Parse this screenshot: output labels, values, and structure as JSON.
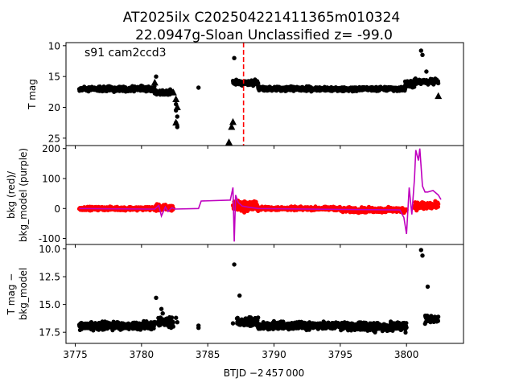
{
  "title_line1": "AT2025ilx  C202504221411365m010324",
  "title_line2": "22.0947g-Sloan Unclassified z= -99.0",
  "xlabel": "BTJD −2 457 000",
  "colors": {
    "flux": "#000000",
    "bkg": "#ff0000",
    "bkg_model": "#bf00bf",
    "marker_line": "#ff0000"
  },
  "chart_data": [
    {
      "type": "scatter",
      "panel": "top",
      "annotation": "s91 cam2ccd3",
      "ylabel": "T mag",
      "xlim": [
        3774.3,
        3804.3
      ],
      "ylim": [
        26.2,
        9.5
      ],
      "y_inverted": true,
      "yticks": [
        10,
        15,
        20,
        25
      ],
      "xticks": [
        3775,
        3780,
        3785,
        3790,
        3795,
        3800
      ],
      "vline_x": 3787.7,
      "segments": [
        {
          "x0": 3775.3,
          "x1": 3781.0,
          "y": 17.0,
          "spread": 0.55
        },
        {
          "x0": 3781.0,
          "x1": 3782.4,
          "y": 17.6,
          "spread": 0.6
        },
        {
          "x0": 3786.9,
          "x1": 3788.8,
          "y": 16.0,
          "spread": 0.6
        },
        {
          "x0": 3788.8,
          "x1": 3799.9,
          "y": 17.0,
          "spread": 0.5
        },
        {
          "x0": 3799.9,
          "x1": 3800.6,
          "y": 16.2,
          "spread": 0.8
        },
        {
          "x0": 3800.6,
          "x1": 3802.4,
          "y": 15.8,
          "spread": 0.6
        }
      ],
      "points": [
        {
          "x": 3782.6,
          "y": 19.5
        },
        {
          "x": 3782.6,
          "y": 20.5
        },
        {
          "x": 3782.7,
          "y": 21.5
        },
        {
          "x": 3782.6,
          "y": 22.5
        },
        {
          "x": 3782.7,
          "y": 23.2
        },
        {
          "x": 3784.3,
          "y": 16.8
        },
        {
          "x": 3787.0,
          "y": 12.0
        },
        {
          "x": 3781.1,
          "y": 15.0
        },
        {
          "x": 3801.1,
          "y": 10.8
        },
        {
          "x": 3801.2,
          "y": 11.5
        },
        {
          "x": 3801.5,
          "y": 14.2
        }
      ],
      "triangles": [
        {
          "x": 3786.6,
          "y": 25.7
        },
        {
          "x": 3786.8,
          "y": 23.2
        },
        {
          "x": 3786.9,
          "y": 22.4
        },
        {
          "x": 3782.6,
          "y": 22.5
        },
        {
          "x": 3782.7,
          "y": 20.0
        },
        {
          "x": 3782.6,
          "y": 18.7
        },
        {
          "x": 3782.4,
          "y": 17.6
        },
        {
          "x": 3781.0,
          "y": 16.0
        },
        {
          "x": 3802.4,
          "y": 18.2
        }
      ]
    },
    {
      "type": "scatter",
      "panel": "middle",
      "ylabel": "bkg (red)/\nbkg_model (purple)",
      "xlim": [
        3774.3,
        3804.3
      ],
      "ylim": [
        -120,
        210
      ],
      "yticks": [
        -100,
        0,
        100,
        200
      ],
      "xticks": [
        3775,
        3780,
        3785,
        3790,
        3795,
        3800
      ],
      "bkg_segments": [
        {
          "x0": 3775.3,
          "x1": 3781.0,
          "y": 0,
          "spread": 8
        },
        {
          "x0": 3781.0,
          "x1": 3782.4,
          "y": 2,
          "spread": 15
        },
        {
          "x0": 3786.9,
          "x1": 3788.8,
          "y": 8,
          "spread": 25
        },
        {
          "x0": 3788.8,
          "x1": 3795.0,
          "y": 0,
          "spread": 8
        },
        {
          "x0": 3795.0,
          "x1": 3800.0,
          "y": -5,
          "spread": 12
        },
        {
          "x0": 3800.6,
          "x1": 3802.4,
          "y": 10,
          "spread": 20
        }
      ],
      "model_line": {
        "x": [
          3775.3,
          3781.0,
          3781.3,
          3781.5,
          3781.8,
          3782.0,
          3782.3,
          3782.5,
          3784.3,
          3784.5,
          3786.7,
          3786.9,
          3787.0,
          3787.1,
          3787.3,
          3787.6,
          3788.0,
          3788.8,
          3795.0,
          3799.5,
          3799.8,
          3800.0,
          3800.2,
          3800.4,
          3800.6,
          3800.7,
          3800.9,
          3801.0,
          3801.2,
          3801.4,
          3801.6,
          3802.0,
          3802.4,
          3802.6
        ],
        "y": [
          0,
          -2,
          10,
          -25,
          5,
          -10,
          3,
          -2,
          0,
          25,
          28,
          70,
          -110,
          45,
          20,
          8,
          5,
          0,
          -3,
          -5,
          -30,
          -85,
          70,
          -20,
          100,
          195,
          160,
          200,
          75,
          55,
          55,
          60,
          45,
          30
        ]
      }
    },
    {
      "type": "scatter",
      "panel": "bottom",
      "ylabel": "T mag −\nbkg_model",
      "xlim": [
        3774.3,
        3804.3
      ],
      "ylim": [
        18.5,
        9.6
      ],
      "y_inverted": true,
      "yticks": [
        10.0,
        12.5,
        15.0,
        17.5
      ],
      "xticks": [
        3775,
        3780,
        3785,
        3790,
        3795,
        3800
      ],
      "segments": [
        {
          "x0": 3775.3,
          "x1": 3781.0,
          "y": 16.9,
          "spread": 0.5
        },
        {
          "x0": 3781.2,
          "x1": 3782.4,
          "y": 16.6,
          "spread": 0.6
        },
        {
          "x0": 3787.2,
          "x1": 3788.8,
          "y": 16.6,
          "spread": 0.6
        },
        {
          "x0": 3788.8,
          "x1": 3795.0,
          "y": 16.9,
          "spread": 0.5
        },
        {
          "x0": 3795.0,
          "x1": 3800.0,
          "y": 17.0,
          "spread": 0.6
        },
        {
          "x0": 3801.4,
          "x1": 3802.4,
          "y": 16.3,
          "spread": 0.5
        }
      ],
      "points": [
        {
          "x": 3787.0,
          "y": 11.4
        },
        {
          "x": 3787.4,
          "y": 14.2
        },
        {
          "x": 3781.1,
          "y": 14.4
        },
        {
          "x": 3801.1,
          "y": 10.1
        },
        {
          "x": 3801.2,
          "y": 10.6
        },
        {
          "x": 3801.6,
          "y": 13.4
        },
        {
          "x": 3781.5,
          "y": 15.4
        },
        {
          "x": 3781.6,
          "y": 15.8
        },
        {
          "x": 3782.6,
          "y": 16.2
        },
        {
          "x": 3782.7,
          "y": 16.6
        },
        {
          "x": 3784.3,
          "y": 16.9
        },
        {
          "x": 3784.3,
          "y": 17.1
        },
        {
          "x": 3786.9,
          "y": 16.7
        }
      ]
    }
  ]
}
